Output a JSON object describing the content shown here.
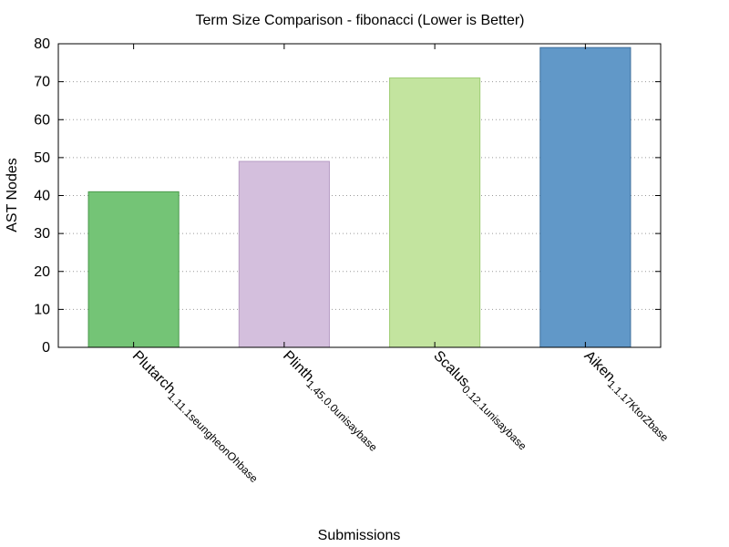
{
  "chart_data": {
    "type": "bar",
    "title": "Term Size Comparison - fibonacci (Lower is Better)",
    "xlabel": "Submissions",
    "ylabel": "AST Nodes",
    "categories": [
      "Plutarch_1.11.1_seungheonOh_base",
      "Plinth_1.45.0.0_unisay_base",
      "Scalus_0.12.1_unisay_base",
      "Aiken_1.1.17_KtorZ_base"
    ],
    "category_parts": [
      [
        {
          "t": "Plutarch",
          "s": false
        },
        {
          "t": "1.11.1",
          "s": true
        },
        {
          "t": "seungheonOh",
          "s": true
        },
        {
          "t": "base",
          "s": true
        }
      ],
      [
        {
          "t": "Plinth",
          "s": false
        },
        {
          "t": "1.45.0.0",
          "s": true
        },
        {
          "t": "unisay",
          "s": true
        },
        {
          "t": "base",
          "s": true
        }
      ],
      [
        {
          "t": "Scalus",
          "s": false
        },
        {
          "t": "0.12.1",
          "s": true
        },
        {
          "t": "unisay",
          "s": true
        },
        {
          "t": "base",
          "s": true
        }
      ],
      [
        {
          "t": "Aiken",
          "s": false
        },
        {
          "t": "1.1.17",
          "s": true
        },
        {
          "t": "KtorZ",
          "s": true
        },
        {
          "t": "base",
          "s": true
        }
      ]
    ],
    "values": [
      41,
      49,
      71,
      79
    ],
    "colors": [
      "#74c476",
      "#d4bfdd",
      "#c3e49f",
      "#6198c8"
    ],
    "border_colors": [
      "#4a9a4c",
      "#b79cc4",
      "#9fce76",
      "#3f6f9c"
    ],
    "ylim": [
      0,
      80
    ],
    "yticks": [
      0,
      10,
      20,
      30,
      40,
      50,
      60,
      70,
      80
    ],
    "grid": true,
    "legend": "none"
  }
}
